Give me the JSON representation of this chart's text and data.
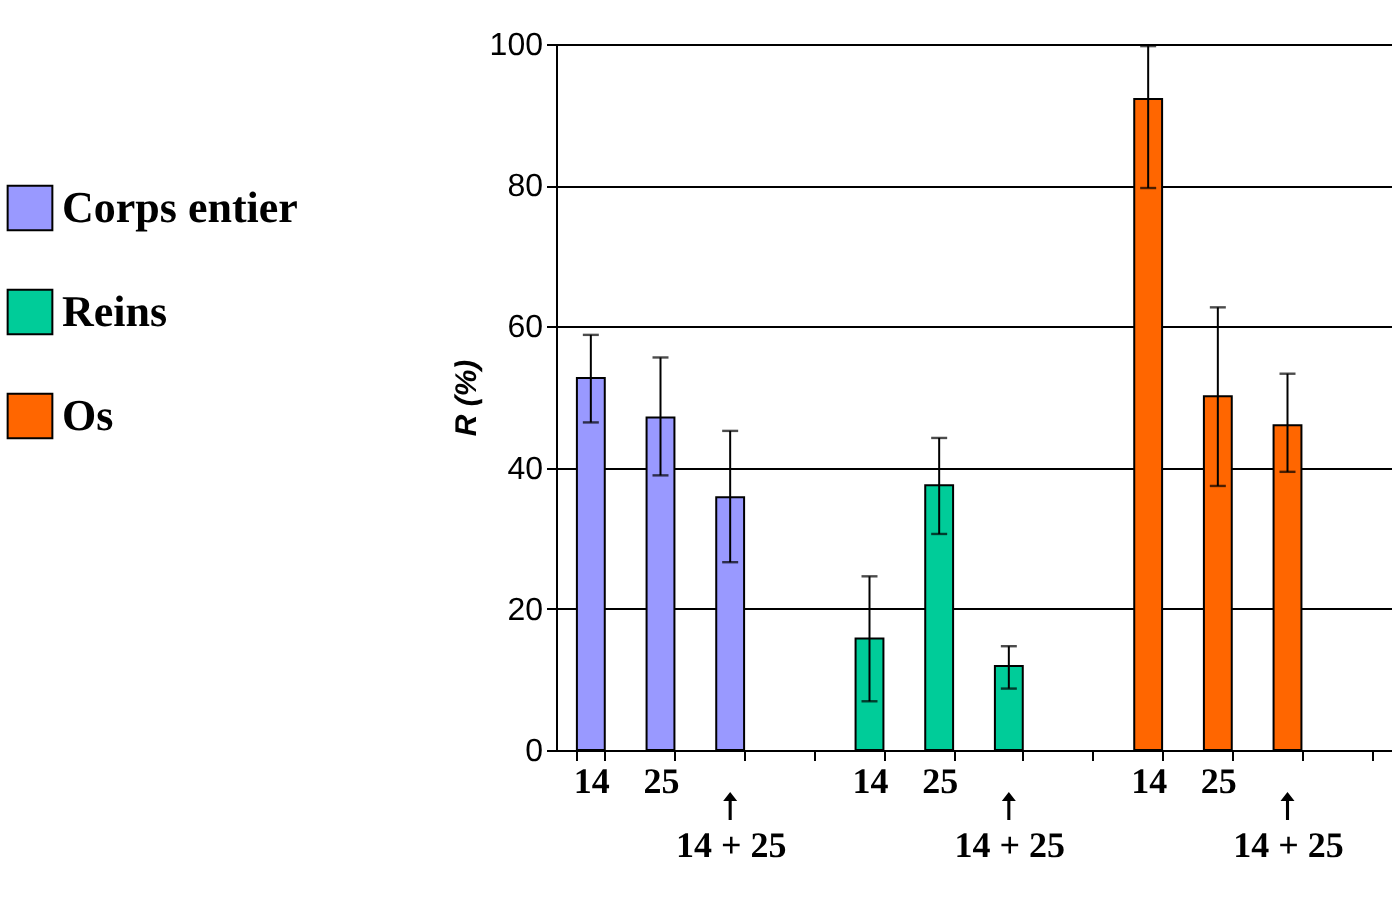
{
  "chart_data": {
    "type": "bar",
    "ylabel": "R (%)",
    "categories": [
      "14",
      "25",
      "14 + 25",
      null,
      "14",
      "25",
      "14 + 25",
      null,
      "14",
      "25",
      "14 + 25",
      null
    ],
    "series": [
      {
        "name": "Corps entier",
        "color": "#9999ff",
        "values": [
          52.7,
          47.1,
          35.8,
          null,
          null,
          null,
          null,
          null,
          null,
          null,
          null,
          null
        ],
        "errors": [
          [
            46.4,
            58.8
          ],
          [
            38.9,
            55.6
          ],
          [
            26.6,
            45.2
          ],
          null,
          null,
          null,
          null,
          null,
          null,
          null,
          null,
          null
        ]
      },
      {
        "name": "Reins",
        "color": "#00cc99",
        "values": [
          null,
          null,
          null,
          null,
          15.8,
          37.5,
          11.9,
          null,
          null,
          null,
          null,
          null
        ],
        "errors": [
          null,
          null,
          null,
          null,
          [
            6.9,
            24.6
          ],
          [
            30.6,
            44.2
          ],
          [
            8.7,
            14.7
          ],
          null,
          null,
          null,
          null,
          null
        ]
      },
      {
        "name": "Os",
        "color": "#ff6600",
        "values": [
          null,
          null,
          null,
          null,
          null,
          null,
          null,
          null,
          92.2,
          50.1,
          46,
          null
        ],
        "errors": [
          null,
          null,
          null,
          null,
          null,
          null,
          null,
          null,
          [
            79.6,
            99.7
          ],
          [
            37.4,
            62.7
          ],
          [
            39.4,
            53.3
          ],
          null
        ]
      }
    ],
    "ylim": [
      0,
      100
    ],
    "yticks": [
      0,
      20,
      40,
      60,
      80,
      100
    ],
    "grid": "y",
    "legend": "left"
  }
}
